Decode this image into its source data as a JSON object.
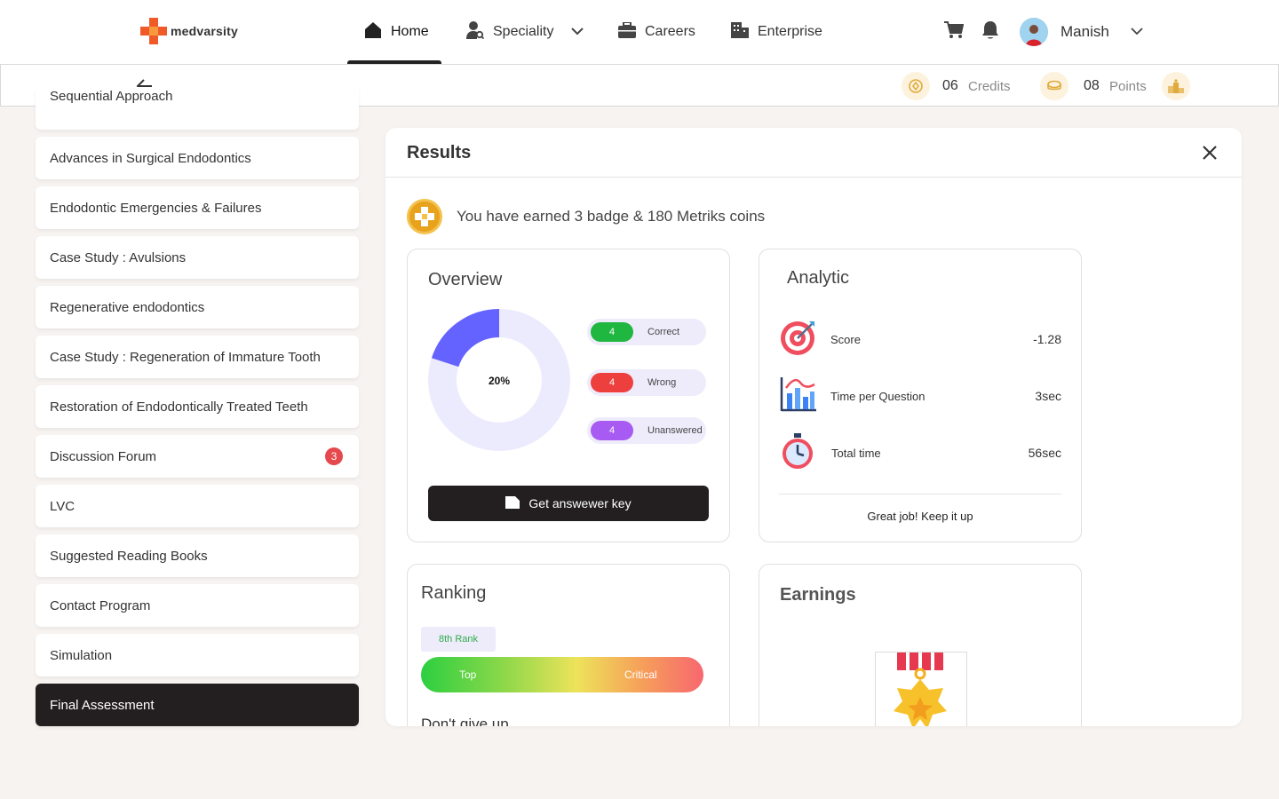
{
  "brand": {
    "name": "medvarsity"
  },
  "nav": {
    "items": [
      {
        "label": "Home",
        "icon": "home-icon"
      },
      {
        "label": "Speciality",
        "icon": "doctor-search-icon"
      },
      {
        "label": "Careers",
        "icon": "briefcase-icon"
      },
      {
        "label": "Enterprise",
        "icon": "building-icon"
      }
    ],
    "user": {
      "name": "Manish"
    }
  },
  "subbar": {
    "credits": {
      "value": "06",
      "label": "Credits"
    },
    "points": {
      "value": "08",
      "label": "Points"
    }
  },
  "sidebar": {
    "items": [
      {
        "label": "Sequential Approach"
      },
      {
        "label": "Advances in Surgical Endodontics"
      },
      {
        "label": "Endodontic Emergencies & Failures"
      },
      {
        "label": "Case Study : Avulsions"
      },
      {
        "label": "Regenerative endodontics"
      },
      {
        "label": "Case Study : Regeneration of Immature Tooth"
      },
      {
        "label": "Restoration of Endodontically Treated Teeth"
      },
      {
        "label": "Discussion Forum",
        "badge": "3"
      },
      {
        "label": "LVC"
      },
      {
        "label": "Suggested Reading Books"
      },
      {
        "label": "Contact Program"
      },
      {
        "label": "Simulation"
      },
      {
        "label": "Final Assessment"
      }
    ]
  },
  "results": {
    "title": "Results",
    "earned_text": "You have earned 3 badge & 180 Metriks coins",
    "overview": {
      "title": "Overview",
      "percent_label": "20%",
      "percent": 0.2,
      "legend": [
        {
          "count": "4",
          "label": "Correct",
          "color": "#1fb73f"
        },
        {
          "count": "4",
          "label": "Wrong",
          "color": "#ee3f3f"
        },
        {
          "count": "4",
          "label": "Unanswered",
          "color": "#a85bf2"
        }
      ],
      "answer_key_button": "Get answewer key",
      "donut_color": "#6463ff",
      "donut_track": "#eceafd"
    },
    "analytic": {
      "title": "Analytic",
      "rows": [
        {
          "label": "Score",
          "value": "-1.28",
          "icon": "target-icon"
        },
        {
          "label": "Time per Question",
          "value": "3sec",
          "icon": "bar-chart-icon"
        },
        {
          "label": "Total time",
          "value": "56sec",
          "icon": "stopwatch-icon"
        }
      ],
      "footer": "Great job! Keep it up"
    },
    "ranking": {
      "title": "Ranking",
      "rank": "8th Rank",
      "bar_left": "Top",
      "bar_right": "Critical",
      "message": "Don't give up"
    },
    "earnings": {
      "title": "Earnings"
    }
  }
}
